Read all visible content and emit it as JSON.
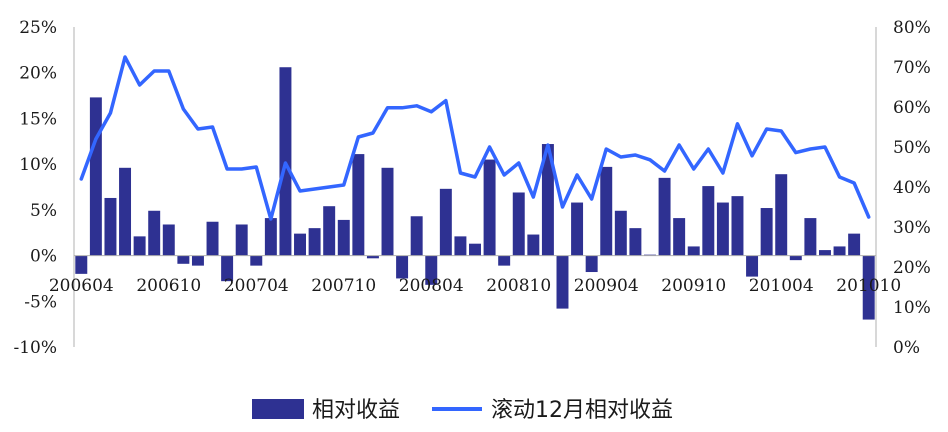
{
  "chart_data": {
    "type": "bar+line",
    "categories": [
      "200604",
      "200605",
      "200606",
      "200607",
      "200608",
      "200609",
      "200610",
      "200611",
      "200612",
      "200701",
      "200702",
      "200703",
      "200704",
      "200705",
      "200706",
      "200707",
      "200708",
      "200709",
      "200710",
      "200711",
      "200712",
      "200801",
      "200802",
      "200803",
      "200804",
      "200805",
      "200806",
      "200807",
      "200808",
      "200809",
      "200810",
      "200811",
      "200812",
      "200901",
      "200902",
      "200903",
      "200904",
      "200905",
      "200906",
      "200907",
      "200908",
      "200909",
      "200910",
      "200911",
      "200912",
      "201001",
      "201002",
      "201003",
      "201004",
      "201005",
      "201006",
      "201007",
      "201008",
      "201009",
      "201010"
    ],
    "x_tick_labels": [
      "200604",
      "200610",
      "200704",
      "200710",
      "200804",
      "200810",
      "200904",
      "200910",
      "201004",
      "201010"
    ],
    "series": [
      {
        "name": "相对收益",
        "axis": "left",
        "render": "bar",
        "color": "#2E3192",
        "values": [
          -2.0,
          17.3,
          6.3,
          9.6,
          2.1,
          4.9,
          3.4,
          -0.9,
          -1.1,
          3.7,
          -2.8,
          3.4,
          -1.1,
          4.1,
          20.6,
          2.4,
          3.0,
          5.4,
          3.9,
          11.1,
          -0.3,
          9.6,
          -2.5,
          4.3,
          -3.2,
          7.3,
          2.1,
          1.3,
          10.5,
          -1.1,
          6.9,
          2.3,
          12.2,
          -5.8,
          5.8,
          -1.8,
          9.7,
          4.9,
          3.0,
          0.1,
          8.5,
          4.1,
          1.0,
          7.6,
          5.8,
          6.5,
          -2.3,
          5.2,
          8.9,
          -0.5,
          4.1,
          0.6,
          1.0,
          2.4,
          -7.0
        ]
      },
      {
        "name": "滚动12月相对收益",
        "axis": "right",
        "render": "line",
        "color": "#3366FF",
        "values": [
          42.0,
          52.0,
          58.5,
          72.5,
          65.5,
          69.0,
          69.0,
          59.5,
          54.5,
          55.0,
          44.5,
          44.5,
          45.0,
          32.0,
          46.0,
          39.0,
          39.5,
          40.0,
          40.5,
          52.5,
          53.5,
          59.8,
          59.8,
          60.3,
          58.8,
          61.6,
          43.5,
          42.5,
          50.0,
          43.0,
          46.0,
          37.5,
          50.5,
          35.0,
          43.0,
          37.0,
          49.5,
          47.5,
          48.0,
          46.8,
          44.0,
          50.5,
          44.5,
          49.5,
          43.5,
          55.8,
          47.8,
          54.5,
          54.0,
          48.6,
          49.5,
          50.0,
          42.5,
          41.0,
          32.5
        ]
      }
    ],
    "y_left": {
      "ylim": [
        -10,
        25
      ],
      "ticks": [
        "25%",
        "20%",
        "15%",
        "10%",
        "5%",
        "0%",
        "-5%",
        "-10%"
      ]
    },
    "y_right": {
      "ylim": [
        0,
        80
      ],
      "ticks": [
        "80%",
        "70%",
        "60%",
        "50%",
        "40%",
        "30%",
        "20%",
        "10%",
        "0%"
      ]
    },
    "legend": {
      "position": "bottom",
      "entries": [
        "相对收益",
        "滚动12月相对收益"
      ]
    },
    "grid": false
  }
}
